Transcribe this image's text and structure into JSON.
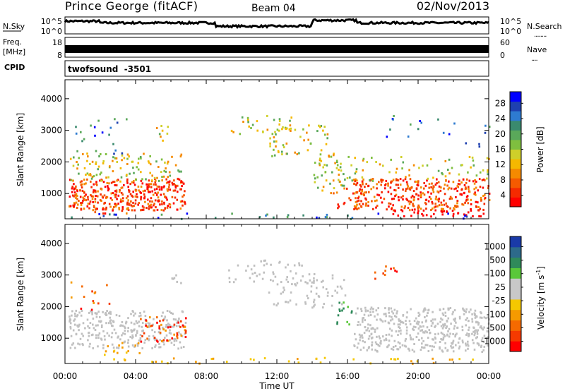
{
  "header": {
    "title": "Prince George (fitACF)",
    "beam": "Beam 04",
    "date": "02/Nov/2013"
  },
  "panels": {
    "nsky_label": "N.Sky",
    "nsearch_label": "N.Search",
    "noise_ticks": [
      "10^5",
      "10^0"
    ],
    "freq_label_1": "Freq.",
    "freq_label_2": "[MHz]",
    "freq_ticks": [
      "18",
      "8"
    ],
    "nave_label": "Nave",
    "nave_ticks": [
      "60",
      "0"
    ],
    "cpid_label": "CPID",
    "cpid_value": "twofsound  -3501"
  },
  "colors": {
    "power_scale": [
      "#0000ff",
      "#1e40b0",
      "#2e7bd0",
      "#3a8a6e",
      "#5aa85a",
      "#7fbf3f",
      "#cfcf2a",
      "#f5b800",
      "#f58a00",
      "#f55a00",
      "#f52a00",
      "#ff0000"
    ],
    "velocity_scale": [
      "#1a3aa8",
      "#2d6a8a",
      "#2f8a5a",
      "#5ac83a",
      "#c8c8c8",
      "#c8c8c8",
      "#f5c800",
      "#f59a00",
      "#f56a00",
      "#f53a00",
      "#ff0000"
    ],
    "ground_scatter": "#c0c0c0"
  },
  "chart_data": [
    {
      "type": "heatmap",
      "title": "",
      "xlabel": "Time UT",
      "ylabel": "Slant Range [km]",
      "x_ticks": [
        "00:00",
        "04:00",
        "08:00",
        "12:00",
        "16:00",
        "20:00",
        "00:00"
      ],
      "y_ticks": [
        1000,
        2000,
        3000,
        4000
      ],
      "ylim": [
        200,
        4600
      ],
      "colorbar": {
        "label": "Power [dB]",
        "ticks": [
          "28",
          "24",
          "20",
          "16",
          "12",
          "8",
          "4"
        ],
        "range": [
          0,
          32
        ]
      }
    },
    {
      "type": "heatmap",
      "title": "",
      "xlabel": "Time UT",
      "ylabel": "Slant Range [km]",
      "x_ticks": [
        "00:00",
        "04:00",
        "08:00",
        "12:00",
        "16:00",
        "20:00",
        "00:00"
      ],
      "y_ticks": [
        1000,
        2000,
        3000,
        4000
      ],
      "ylim": [
        200,
        4600
      ],
      "colorbar": {
        "label": "Velocity [m s",
        "label_sup": "-1",
        "label_end": "]",
        "ticks": [
          "1000",
          "500",
          "100",
          "25",
          "-25",
          "-100",
          "-500",
          "-1000"
        ]
      }
    }
  ]
}
